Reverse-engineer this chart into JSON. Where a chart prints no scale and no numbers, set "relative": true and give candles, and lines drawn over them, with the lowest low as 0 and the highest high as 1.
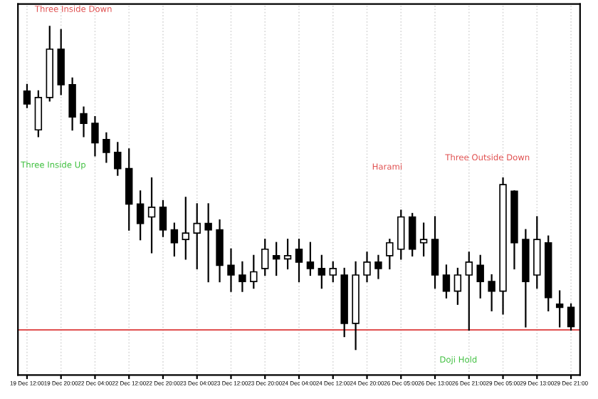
{
  "chart_data": {
    "type": "candlestick",
    "relative": true,
    "grid": true,
    "color": "#000000",
    "categories": [
      "19 Dec 12:00",
      null,
      null,
      "19 Dec 20:00",
      null,
      null,
      "22 Dec 04:00",
      null,
      null,
      "22 Dec 12:00",
      null,
      null,
      "22 Dec 20:00",
      null,
      null,
      "23 Dec 04:00",
      null,
      null,
      "23 Dec 12:00",
      null,
      null,
      "23 Dec 20:00",
      null,
      null,
      "24 Dec 04:00",
      null,
      null,
      "24 Dec 12:00",
      null,
      null,
      "24 Dec 20:00",
      null,
      null,
      "26 Dec 05:00",
      null,
      null,
      "26 Dec 13:00",
      null,
      null,
      "26 Dec 21:00",
      null,
      null,
      "29 Dec 05:00",
      null,
      null,
      "29 Dec 13:00",
      null,
      null,
      "29 Dec 21:00"
    ],
    "ohlc": [
      [
        0.8,
        0.82,
        0.75,
        0.76
      ],
      [
        0.68,
        0.8,
        0.66,
        0.78
      ],
      [
        0.78,
        1.0,
        0.77,
        0.93
      ],
      [
        0.93,
        0.99,
        0.79,
        0.82
      ],
      [
        0.82,
        0.84,
        0.68,
        0.72
      ],
      [
        0.73,
        0.75,
        0.66,
        0.7
      ],
      [
        0.7,
        0.72,
        0.6,
        0.64
      ],
      [
        0.65,
        0.67,
        0.58,
        0.61
      ],
      [
        0.61,
        0.64,
        0.54,
        0.56
      ],
      [
        0.56,
        0.62,
        0.37,
        0.45
      ],
      [
        0.45,
        0.49,
        0.34,
        0.39
      ],
      [
        0.41,
        0.53,
        0.3,
        0.44
      ],
      [
        0.44,
        0.46,
        0.35,
        0.37
      ],
      [
        0.37,
        0.39,
        0.29,
        0.33
      ],
      [
        0.34,
        0.47,
        0.28,
        0.36
      ],
      [
        0.36,
        0.45,
        0.25,
        0.39
      ],
      [
        0.39,
        0.45,
        0.21,
        0.37
      ],
      [
        0.37,
        0.4,
        0.21,
        0.26
      ],
      [
        0.26,
        0.31,
        0.18,
        0.23
      ],
      [
        0.23,
        0.27,
        0.18,
        0.21
      ],
      [
        0.21,
        0.29,
        0.19,
        0.24
      ],
      [
        0.25,
        0.34,
        0.23,
        0.31
      ],
      [
        0.29,
        0.33,
        0.23,
        0.28
      ],
      [
        0.28,
        0.34,
        0.25,
        0.29
      ],
      [
        0.31,
        0.34,
        0.21,
        0.27
      ],
      [
        0.27,
        0.33,
        0.23,
        0.25
      ],
      [
        0.25,
        0.29,
        0.19,
        0.23
      ],
      [
        0.23,
        0.27,
        0.21,
        0.25
      ],
      [
        0.23,
        0.25,
        0.04,
        0.08
      ],
      [
        0.08,
        0.27,
        0.0,
        0.23
      ],
      [
        0.23,
        0.3,
        0.21,
        0.27
      ],
      [
        0.27,
        0.29,
        0.22,
        0.25
      ],
      [
        0.29,
        0.34,
        0.25,
        0.33
      ],
      [
        0.31,
        0.43,
        0.28,
        0.41
      ],
      [
        0.41,
        0.42,
        0.29,
        0.31
      ],
      [
        0.33,
        0.39,
        0.29,
        0.34
      ],
      [
        0.34,
        0.41,
        0.19,
        0.23
      ],
      [
        0.23,
        0.26,
        0.16,
        0.18
      ],
      [
        0.18,
        0.25,
        0.14,
        0.23
      ],
      [
        0.23,
        0.3,
        0.06,
        0.27
      ],
      [
        0.26,
        0.29,
        0.16,
        0.21
      ],
      [
        0.21,
        0.23,
        0.12,
        0.18
      ],
      [
        0.18,
        0.53,
        0.11,
        0.51
      ],
      [
        0.49,
        0.49,
        0.25,
        0.33
      ],
      [
        0.34,
        0.37,
        0.07,
        0.21
      ],
      [
        0.23,
        0.41,
        0.19,
        0.34
      ],
      [
        0.33,
        0.35,
        0.12,
        0.16
      ],
      [
        0.14,
        0.18,
        0.07,
        0.13
      ],
      [
        0.13,
        0.14,
        0.06,
        0.07
      ]
    ],
    "ref_lines": [
      {
        "axis": "y",
        "value": 0.06,
        "color": "#e05050"
      }
    ],
    "annotations": [
      "Three Inside Down",
      "Three Inside Up",
      "Harami",
      "Three Outside Down",
      "Doji Hold"
    ]
  }
}
